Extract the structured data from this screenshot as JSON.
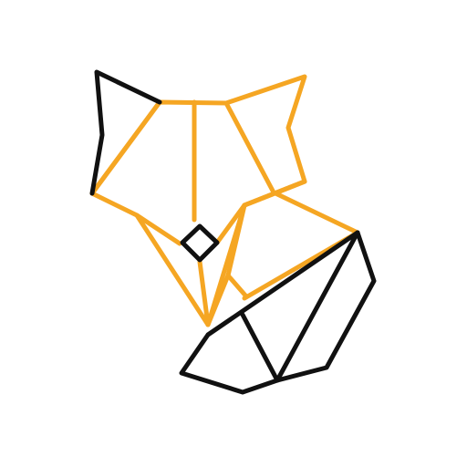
{
  "image": {
    "subject": "geometric-fox-logo",
    "colors": {
      "background": "#ffffff",
      "accent": "#f5a623",
      "outline": "#111111"
    }
  }
}
